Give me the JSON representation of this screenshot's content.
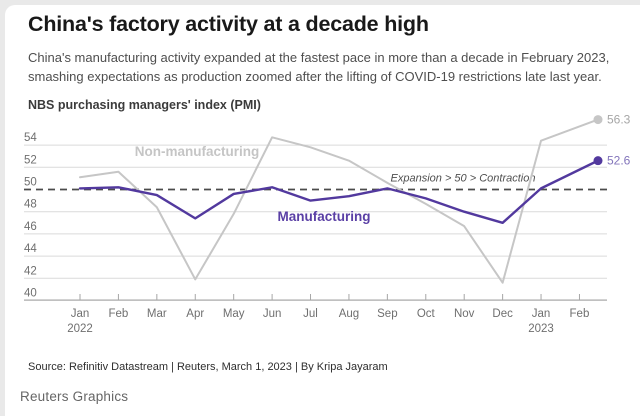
{
  "page": {
    "title": "China's factory activity at a decade high",
    "subtitle": "China's manufacturing activity expanded at the fastest pace in more than a decade in February 2023, smashing expectations as production zoomed after the lifting of COVID-19 restrictions late last year.",
    "source_line": "Source: Refinitiv Datastream | Reuters, March 1, 2023 | By Kripa Jayaram",
    "footer_brand": "Reuters Graphics"
  },
  "colors": {
    "background": "#e9e9e9",
    "card": "#ffffff",
    "gridline": "#dadada",
    "axis": "#a6a6a6",
    "axis_text": "#6f6f6f",
    "dashed_reference": "#4b4b4b"
  },
  "chart_data": {
    "type": "line",
    "title": "NBS purchasing managers' index (PMI)",
    "categories": [
      "Jan",
      "Feb",
      "Mar",
      "Apr",
      "May",
      "Jun",
      "Jul",
      "Aug",
      "Sep",
      "Oct",
      "Nov",
      "Dec",
      "Jan",
      "Feb"
    ],
    "year_labels": [
      {
        "index": 0,
        "text": "2022"
      },
      {
        "index": 12,
        "text": "2023"
      }
    ],
    "yticks": [
      54,
      52,
      50,
      48,
      46,
      44,
      42,
      40
    ],
    "ylim": [
      39.6,
      57.2
    ],
    "grid": true,
    "legend": "inline-labels",
    "reference_line": {
      "value": 50,
      "label": "Expansion > 50 > Contraction"
    },
    "series": [
      {
        "name": "Non-manufacturing",
        "values": [
          51.1,
          51.6,
          48.4,
          41.9,
          47.8,
          54.7,
          53.8,
          52.6,
          50.6,
          48.7,
          46.7,
          41.6,
          54.4,
          56.3
        ],
        "end_label": "56.3",
        "color": "#c6c6c6",
        "label_color": "#c5c5c5",
        "end_label_color": "#a6a6a6"
      },
      {
        "name": "Manufacturing",
        "values": [
          50.1,
          50.2,
          49.5,
          47.4,
          49.6,
          50.2,
          49.0,
          49.4,
          50.1,
          49.2,
          48.0,
          47.0,
          50.1,
          52.6
        ],
        "end_label": "52.6",
        "color": "#52399e",
        "label_color": "#5a3fa5",
        "end_label_color": "#8375bb"
      }
    ]
  }
}
